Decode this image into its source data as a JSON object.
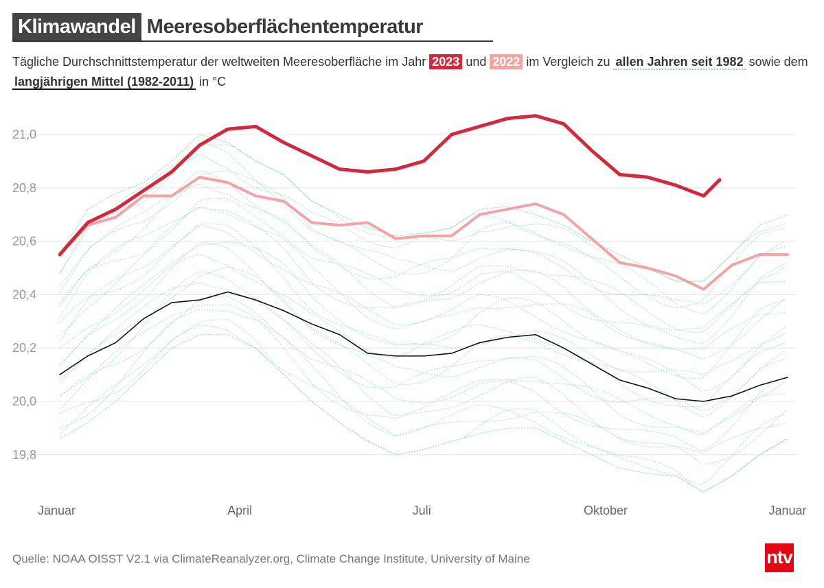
{
  "header": {
    "kicker": "Klimawandel",
    "title": "Meeresoberflächentemperatur",
    "subtitle": {
      "part1": "Tägliche Durchschnittstemperatur der weltweiten Meeresoberfläche im Jahr ",
      "badge_2023": "2023",
      "part2": " und ",
      "badge_2022": "2022",
      "part3": " im Vergleich zu ",
      "all_years": "allen Jahren seit 1982",
      "part4": " sowie dem ",
      "mean": "langjährigen Mittel (1982-2011)",
      "part5": " in °C"
    }
  },
  "footer": {
    "source": "Quelle: NOAA OISST V2.1 via ClimateReanalyzer.org, Climate Change Institute, University of Maine",
    "logo_text": "ntv"
  },
  "colors": {
    "y2023": "#d1293d",
    "y2022": "#f4a3a3",
    "all_years": "#5cc4b6",
    "mean": "#111111",
    "logo": "#e30613"
  },
  "chart_data": {
    "type": "line",
    "xlabel": "",
    "ylabel": "",
    "ylim": [
      19.7,
      21.1
    ],
    "y_ticks": [
      19.8,
      20.0,
      20.2,
      20.4,
      20.6,
      20.8,
      21.0
    ],
    "y_tick_labels": [
      "19,8",
      "20,0",
      "20,2",
      "20,4",
      "20,6",
      "20,8",
      "21,0"
    ],
    "x_tick_labels": [
      {
        "label": "Januar",
        "date": "01-01"
      },
      {
        "label": "April",
        "date": "04-01"
      },
      {
        "label": "Juli",
        "date": "07-01"
      },
      {
        "label": "Oktober",
        "date": "10-01"
      },
      {
        "label": "Januar",
        "date": "12-31"
      }
    ],
    "grid": true,
    "x": [
      "01-01",
      "01-15",
      "01-29",
      "02-12",
      "02-26",
      "03-12",
      "03-26",
      "04-09",
      "04-23",
      "05-07",
      "05-21",
      "06-04",
      "06-18",
      "07-02",
      "07-16",
      "07-30",
      "08-13",
      "08-27",
      "09-10",
      "09-24",
      "10-08",
      "10-22",
      "11-05",
      "11-19",
      "12-03",
      "12-17",
      "12-31"
    ],
    "series": [
      {
        "name": "2023",
        "key": "y2023",
        "values": [
          20.55,
          20.67,
          20.72,
          20.79,
          20.86,
          20.96,
          21.02,
          21.03,
          20.97,
          20.92,
          20.87,
          20.86,
          20.87,
          20.9,
          21.0,
          21.03,
          21.06,
          21.07,
          21.04,
          20.94,
          20.85,
          20.84,
          20.81,
          20.77,
          null,
          null,
          null
        ],
        "last_point": {
          "date": "11-27",
          "value": 20.83
        }
      },
      {
        "name": "2022",
        "key": "y2022",
        "values": [
          20.55,
          20.66,
          20.69,
          20.77,
          20.77,
          20.84,
          20.82,
          20.77,
          20.75,
          20.67,
          20.66,
          20.67,
          20.61,
          20.62,
          20.62,
          20.7,
          20.72,
          20.74,
          20.7,
          20.61,
          20.52,
          20.5,
          20.47,
          20.42,
          20.51,
          20.55,
          20.55
        ]
      },
      {
        "name": "langjährigen Mittel (1982-2011)",
        "key": "mean",
        "values": [
          20.1,
          20.17,
          20.22,
          20.31,
          20.37,
          20.38,
          20.41,
          20.38,
          20.34,
          20.29,
          20.25,
          20.18,
          20.17,
          20.17,
          20.18,
          20.22,
          20.24,
          20.25,
          20.2,
          20.14,
          20.08,
          20.05,
          20.01,
          20.0,
          20.02,
          20.06,
          20.09
        ]
      }
    ],
    "all_years_range": {
      "name": "allen Jahren seit 1982",
      "max": [
        20.55,
        20.72,
        20.78,
        20.82,
        20.9,
        21.0,
        20.97,
        20.9,
        20.85,
        20.75,
        20.7,
        20.65,
        20.62,
        20.63,
        20.65,
        20.72,
        20.73,
        20.7,
        20.66,
        20.6,
        20.55,
        20.5,
        20.45,
        20.45,
        20.55,
        20.66,
        20.7
      ],
      "min": [
        19.86,
        19.92,
        20.0,
        20.1,
        20.2,
        20.25,
        20.25,
        20.2,
        20.1,
        20.0,
        19.92,
        19.85,
        19.8,
        19.82,
        19.85,
        19.88,
        19.9,
        19.9,
        19.85,
        19.8,
        19.75,
        19.73,
        19.72,
        19.66,
        19.72,
        19.8,
        19.86
      ]
    }
  }
}
